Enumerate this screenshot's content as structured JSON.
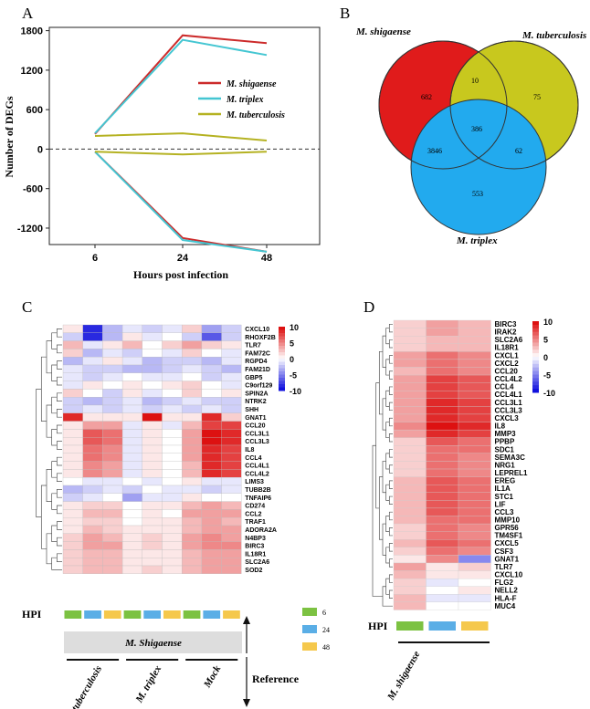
{
  "panels": {
    "A": "A",
    "B": "B",
    "C": "C",
    "D": "D"
  },
  "chart_data": [
    {
      "panel": "A",
      "type": "line",
      "title": "",
      "xlabel": "Hours post infection",
      "ylabel": "Number of DEGs",
      "x": [
        6,
        24,
        48
      ],
      "ylim": [
        -1450,
        1850
      ],
      "yticks": [
        -1200,
        -600,
        0,
        600,
        1200,
        1800
      ],
      "reference_line": 0,
      "grid": false,
      "legend_position": "upper-right",
      "series": [
        {
          "name": "M. shigaense",
          "color": "#cc2b2b",
          "up": [
            230,
            1730,
            1610
          ],
          "down": [
            -40,
            -1350,
            -1560
          ]
        },
        {
          "name": "M. triplex",
          "color": "#44c6d2",
          "up": [
            240,
            1660,
            1430
          ],
          "down": [
            -40,
            -1380,
            -1560
          ]
        },
        {
          "name": "M. tuberculosis",
          "color": "#b5b222",
          "up": [
            200,
            240,
            130
          ],
          "down": [
            -40,
            -80,
            -40
          ]
        }
      ]
    },
    {
      "panel": "B",
      "type": "venn",
      "sets": [
        {
          "name": "M. shigaense",
          "color": "#e01b1b"
        },
        {
          "name": "M. tuberculosis",
          "color": "#c8c81e"
        },
        {
          "name": "M. triplex",
          "color": "#22aaee"
        }
      ],
      "regions": {
        "shigaense_only": 682,
        "tuberculosis_only": 75,
        "triplex_only": 553,
        "shigaense_tuberculosis": 10,
        "shigaense_triplex": 3846,
        "tuberculosis_triplex": 62,
        "all_three": 386
      }
    },
    {
      "panel": "C",
      "type": "heatmap",
      "scale": {
        "ticks": [
          "10",
          "5",
          "0",
          "-5",
          "-10"
        ],
        "colors": [
          "#dd1111",
          "#ffffff",
          "#1111dd"
        ]
      },
      "rows": [
        "CXCL10",
        "RHOXF2B",
        "TLR7",
        "FAM72C",
        "RGPD4",
        "FAM21D",
        "GBP5",
        "C9orf129",
        "SPIN2A",
        "NTRK2",
        "SHH",
        "GNAT1",
        "CCL20",
        "CCL3L1",
        "CCL3L3",
        "IL8",
        "CCL4",
        "CCL4L1",
        "CCL4L2",
        "LIMS3",
        "TUBB2B",
        "TNFAIP6",
        "CD274",
        "CCL2",
        "TRAF1",
        "ADORA2A",
        "N4BP3",
        "BIRC3",
        "IL18R1",
        "SLC2A6",
        "SOD2"
      ],
      "columns": 9,
      "values": [
        [
          1,
          -9,
          -3,
          -1,
          -2,
          -1,
          2,
          -4,
          -2
        ],
        [
          -2,
          -9,
          -3,
          1,
          -1,
          0,
          -2,
          -7,
          -2
        ],
        [
          3,
          -1,
          1,
          3,
          0,
          2,
          4,
          2,
          1
        ],
        [
          2,
          -3,
          -1,
          -2,
          0,
          -1,
          2,
          0,
          -1
        ],
        [
          -3,
          -1,
          1,
          -1,
          -3,
          -2,
          -2,
          -3,
          -1
        ],
        [
          -1,
          -2,
          -2,
          -3,
          -3,
          -2,
          -1,
          -2,
          -3
        ],
        [
          -1,
          -2,
          -1,
          0,
          -1,
          -1,
          0,
          -2,
          -1
        ],
        [
          -1,
          1,
          0,
          1,
          0,
          1,
          2,
          0,
          -1
        ],
        [
          2,
          0,
          -2,
          1,
          -1,
          0,
          2,
          0,
          1
        ],
        [
          -2,
          -3,
          -2,
          -1,
          -3,
          -2,
          -1,
          -2,
          -2
        ],
        [
          -2,
          -1,
          -2,
          -1,
          -2,
          -1,
          -2,
          -1,
          -2
        ],
        [
          9,
          1,
          1,
          1,
          10,
          1,
          1,
          9,
          2
        ],
        [
          1,
          4,
          4,
          -1,
          1,
          -1,
          3,
          8,
          8
        ],
        [
          1,
          7,
          6,
          -1,
          1,
          0,
          4,
          10,
          9
        ],
        [
          1,
          7,
          6,
          -1,
          1,
          0,
          4,
          10,
          9
        ],
        [
          1,
          6,
          5,
          -1,
          1,
          0,
          4,
          9,
          8
        ],
        [
          1,
          6,
          5,
          -1,
          1,
          0,
          4,
          9,
          8
        ],
        [
          1,
          5,
          4,
          -1,
          1,
          0,
          3,
          9,
          8
        ],
        [
          1,
          5,
          4,
          -1,
          1,
          0,
          3,
          9,
          8
        ],
        [
          0,
          -1,
          -1,
          0,
          -1,
          0,
          1,
          -1,
          -1
        ],
        [
          -3,
          -2,
          -1,
          -2,
          0,
          -1,
          -1,
          -2,
          -1
        ],
        [
          -2,
          -1,
          0,
          -4,
          -1,
          -1,
          1,
          0,
          0
        ],
        [
          1,
          2,
          2,
          0,
          1,
          1,
          3,
          4,
          3
        ],
        [
          1,
          3,
          3,
          0,
          1,
          0,
          4,
          4,
          4
        ],
        [
          1,
          2,
          2,
          0,
          1,
          1,
          3,
          4,
          3
        ],
        [
          1,
          3,
          2,
          1,
          1,
          1,
          3,
          4,
          4
        ],
        [
          2,
          4,
          3,
          1,
          2,
          1,
          4,
          5,
          4
        ],
        [
          2,
          4,
          4,
          1,
          2,
          1,
          4,
          5,
          5
        ],
        [
          2,
          3,
          3,
          1,
          1,
          1,
          3,
          4,
          4
        ],
        [
          2,
          3,
          3,
          1,
          1,
          1,
          3,
          4,
          4
        ],
        [
          2,
          3,
          3,
          1,
          2,
          1,
          3,
          4,
          4
        ]
      ],
      "hpi_label": "HPI",
      "legend": [
        "6",
        "24",
        "48"
      ],
      "legend_colors": [
        "#7cc242",
        "#5aaee6",
        "#f5c84c"
      ],
      "column_group_label": "M. Shigaense",
      "reference_label": "Reference",
      "groups": [
        "M. tuberculosis",
        "M. triplex",
        "Mock"
      ]
    },
    {
      "panel": "D",
      "type": "heatmap",
      "scale": {
        "ticks": [
          "10",
          "5",
          "0",
          "-5",
          "-10"
        ],
        "colors": [
          "#dd1111",
          "#ffffff",
          "#1111dd"
        ]
      },
      "rows": [
        "BIRC3",
        "IRAK2",
        "SLC2A6",
        "IL18R1",
        "CXCL1",
        "CXCL2",
        "CCL20",
        "CCL4L2",
        "CCL4",
        "CCL4L1",
        "CCL3L1",
        "CCL3L3",
        "CXCL3",
        "IL8",
        "MMP3",
        "PPBP",
        "SDC1",
        "SEMA3C",
        "NRG1",
        "LEPREL1",
        "EREG",
        "IL1A",
        "STC1",
        "LIF",
        "CCL3",
        "MMP10",
        "GPR56",
        "TM4SF1",
        "CXCL5",
        "CSF3",
        "GNAT1",
        "TLR7",
        "CXCL10",
        "FLG2",
        "NELL2",
        "HLA-F",
        "MUC4"
      ],
      "columns": 3,
      "values": [
        [
          2,
          4,
          3
        ],
        [
          2,
          4,
          3
        ],
        [
          2,
          3,
          3
        ],
        [
          2,
          3,
          3
        ],
        [
          4,
          6,
          5
        ],
        [
          4,
          6,
          5
        ],
        [
          3,
          6,
          5
        ],
        [
          4,
          8,
          7
        ],
        [
          4,
          8,
          7
        ],
        [
          4,
          8,
          7
        ],
        [
          4,
          9,
          8
        ],
        [
          4,
          9,
          8
        ],
        [
          4,
          9,
          8
        ],
        [
          5,
          10,
          9
        ],
        [
          4,
          9,
          8
        ],
        [
          2,
          7,
          6
        ],
        [
          2,
          6,
          6
        ],
        [
          2,
          6,
          5
        ],
        [
          2,
          6,
          5
        ],
        [
          2,
          6,
          5
        ],
        [
          3,
          7,
          6
        ],
        [
          3,
          7,
          6
        ],
        [
          3,
          7,
          6
        ],
        [
          3,
          7,
          6
        ],
        [
          3,
          7,
          6
        ],
        [
          3,
          6,
          6
        ],
        [
          2,
          6,
          5
        ],
        [
          2,
          6,
          5
        ],
        [
          3,
          7,
          6
        ],
        [
          2,
          6,
          5
        ],
        [
          1,
          5,
          -5
        ],
        [
          4,
          1,
          2
        ],
        [
          3,
          1,
          1
        ],
        [
          2,
          -1,
          0
        ],
        [
          2,
          0,
          1
        ],
        [
          3,
          -1,
          -1
        ],
        [
          3,
          0,
          0
        ]
      ],
      "hpi_label": "HPI",
      "bottom_label": "M. shigaense"
    }
  ]
}
